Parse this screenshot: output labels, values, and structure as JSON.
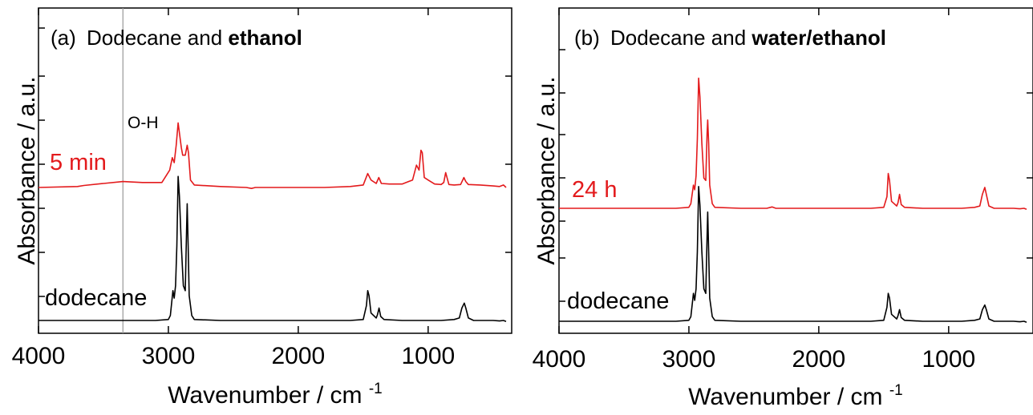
{
  "chart_data": [
    {
      "type": "line",
      "panel_label": "(a)",
      "title": "Dodecane and ",
      "title_bold": "ethanol",
      "xlabel": "Wavenumber / cm",
      "xlabel_sup": "-1",
      "ylabel": "Absorbance / a.u.",
      "xlim": [
        4000,
        400
      ],
      "x_ticks": [
        4000,
        3000,
        2000,
        1000
      ],
      "x_tick_labels": [
        "4000",
        "3000",
        "2000",
        "1000"
      ],
      "y_units_shown": false,
      "annotations": [
        {
          "text": "O-H",
          "at_wavenumber": 3350,
          "vertical_line": true
        }
      ],
      "series": [
        {
          "name": "5 min",
          "color": "#e31a1c",
          "x": [
            4000,
            3700,
            3650,
            3500,
            3350,
            3200,
            3050,
            2990,
            2970,
            2955,
            2940,
            2925,
            2915,
            2900,
            2890,
            2870,
            2855,
            2845,
            2830,
            2800,
            2600,
            2400,
            2360,
            2330,
            2200,
            2000,
            1800,
            1600,
            1500,
            1465,
            1440,
            1400,
            1380,
            1360,
            1300,
            1200,
            1120,
            1090,
            1070,
            1055,
            1045,
            1030,
            1000,
            950,
            900,
            880,
            865,
            840,
            800,
            750,
            725,
            710,
            690,
            600,
            500,
            450,
            420,
            400
          ],
          "y": [
            0,
            0.02,
            0.04,
            0.08,
            0.12,
            0.1,
            0.1,
            0.35,
            0.6,
            0.5,
            0.85,
            1.3,
            1.1,
            0.8,
            0.65,
            0.65,
            0.85,
            0.7,
            0.15,
            0.05,
            0.02,
            0.0,
            -0.02,
            0.0,
            0.0,
            0.0,
            0.0,
            0.02,
            0.05,
            0.28,
            0.15,
            0.08,
            0.2,
            0.08,
            0.07,
            0.07,
            0.15,
            0.45,
            0.35,
            0.75,
            0.7,
            0.2,
            0.15,
            0.07,
            0.06,
            0.1,
            0.3,
            0.06,
            0.05,
            0.06,
            0.2,
            0.12,
            0.06,
            0.05,
            0.03,
            0.02,
            0.05,
            0.0
          ]
        },
        {
          "name": "dodecane",
          "color": "#000000",
          "x": [
            4000,
            3500,
            3100,
            3000,
            2985,
            2965,
            2955,
            2945,
            2935,
            2925,
            2915,
            2900,
            2885,
            2870,
            2860,
            2855,
            2848,
            2840,
            2820,
            2800,
            2600,
            2400,
            2200,
            2000,
            1800,
            1600,
            1500,
            1475,
            1465,
            1455,
            1440,
            1400,
            1390,
            1378,
            1365,
            1340,
            1200,
            1000,
            900,
            800,
            760,
            740,
            722,
            710,
            690,
            650,
            500,
            450,
            420,
            400
          ],
          "y": [
            0,
            0,
            0,
            0.02,
            0.1,
            0.6,
            0.45,
            0.7,
            1.5,
            2.9,
            2.5,
            1.5,
            0.7,
            0.6,
            1.8,
            2.35,
            1.5,
            0.5,
            0.1,
            0.02,
            0.0,
            0.0,
            0.0,
            0.0,
            0.0,
            0.0,
            0.02,
            0.3,
            0.6,
            0.5,
            0.15,
            0.05,
            0.12,
            0.25,
            0.08,
            0.02,
            0.0,
            0.0,
            0.0,
            0.02,
            0.05,
            0.25,
            0.35,
            0.25,
            0.05,
            0.0,
            0.0,
            -0.01,
            0.0,
            -0.02
          ]
        }
      ],
      "series_labels": [
        "5 min",
        "dodecane"
      ]
    },
    {
      "type": "line",
      "panel_label": "(b)",
      "title": "Dodecane and ",
      "title_bold": "water/ethanol",
      "xlabel": "Wavenumber / cm",
      "xlabel_sup": "-1",
      "ylabel": "Absorbance / a.u.",
      "xlim": [
        4000,
        400
      ],
      "x_ticks": [
        4000,
        3000,
        2000,
        1000
      ],
      "x_tick_labels": [
        "4000",
        "3000",
        "2000",
        "1000"
      ],
      "y_units_shown": false,
      "series": [
        {
          "name": "24 h",
          "color": "#e31a1c",
          "x": [
            4000,
            3500,
            3100,
            3000,
            2985,
            2965,
            2955,
            2945,
            2935,
            2925,
            2915,
            2900,
            2885,
            2870,
            2860,
            2855,
            2848,
            2840,
            2820,
            2800,
            2600,
            2400,
            2360,
            2330,
            2200,
            2000,
            1800,
            1600,
            1500,
            1475,
            1465,
            1455,
            1440,
            1400,
            1390,
            1378,
            1365,
            1340,
            1200,
            1000,
            900,
            800,
            760,
            740,
            722,
            710,
            690,
            650,
            500,
            450,
            420,
            400
          ],
          "y": [
            0,
            0,
            0,
            0.02,
            0.1,
            0.5,
            0.4,
            0.7,
            1.5,
            2.8,
            2.4,
            1.4,
            0.65,
            0.6,
            1.6,
            1.9,
            1.4,
            0.5,
            0.1,
            0.02,
            0.0,
            0.0,
            0.03,
            0.0,
            0.0,
            0.0,
            0.0,
            0.0,
            0.02,
            0.25,
            0.75,
            0.6,
            0.15,
            0.05,
            0.12,
            0.3,
            0.08,
            0.02,
            0.0,
            0.0,
            0.0,
            0.02,
            0.05,
            0.3,
            0.45,
            0.3,
            0.05,
            0.0,
            0.0,
            -0.01,
            0.0,
            -0.02
          ]
        },
        {
          "name": "dodecane",
          "color": "#000000",
          "x": [
            4000,
            3500,
            3100,
            3000,
            2985,
            2965,
            2955,
            2945,
            2935,
            2925,
            2915,
            2900,
            2885,
            2870,
            2860,
            2855,
            2848,
            2840,
            2820,
            2800,
            2600,
            2400,
            2200,
            2000,
            1800,
            1600,
            1500,
            1475,
            1465,
            1455,
            1440,
            1400,
            1390,
            1378,
            1365,
            1340,
            1200,
            1000,
            900,
            800,
            760,
            740,
            722,
            710,
            690,
            650,
            500,
            450,
            420,
            400
          ],
          "y": [
            0,
            0,
            0,
            0.02,
            0.1,
            0.6,
            0.45,
            0.7,
            1.5,
            2.9,
            2.5,
            1.5,
            0.7,
            0.6,
            1.8,
            2.35,
            1.5,
            0.5,
            0.1,
            0.02,
            0.0,
            0.0,
            0.0,
            0.0,
            0.0,
            0.0,
            0.02,
            0.3,
            0.6,
            0.5,
            0.15,
            0.05,
            0.12,
            0.25,
            0.08,
            0.02,
            0.0,
            0.0,
            0.0,
            0.02,
            0.05,
            0.25,
            0.35,
            0.25,
            0.05,
            0.0,
            0.0,
            -0.01,
            0.0,
            -0.02
          ]
        }
      ],
      "series_labels": [
        "24 h",
        "dodecane"
      ]
    }
  ]
}
